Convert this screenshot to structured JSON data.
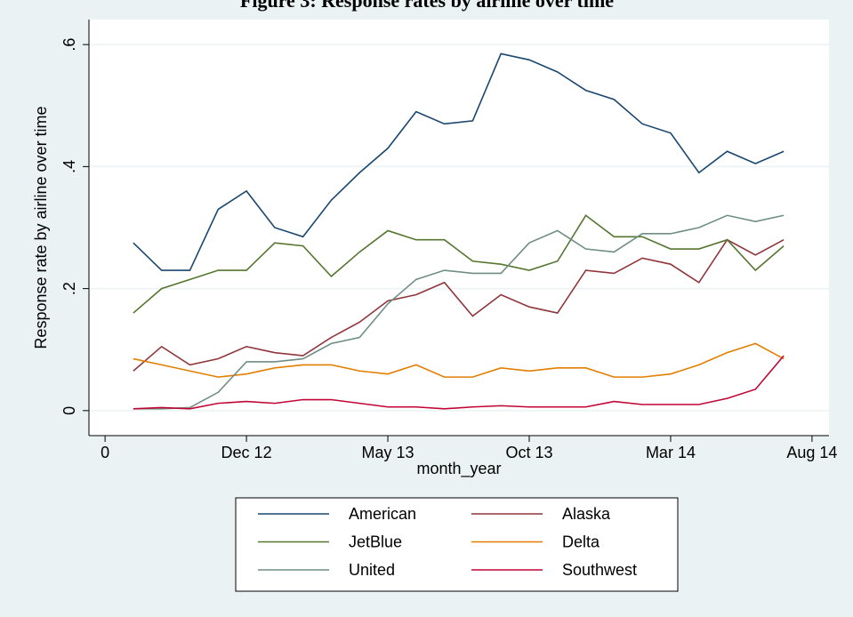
{
  "chart_data": {
    "type": "line",
    "title": "Figure 3: Response rates by airline over time",
    "x_label": "month_year",
    "y_label": "Response rate by airline over time",
    "x": [
      1,
      2,
      3,
      4,
      5,
      6,
      7,
      8,
      9,
      10,
      11,
      12,
      13,
      14,
      15,
      16,
      17,
      18,
      19,
      20,
      21,
      22,
      23,
      24
    ],
    "xlim": [
      -0.57,
      25.6
    ],
    "xticks": [
      0,
      {
        "value": 5,
        "label": "Dec 12"
      },
      {
        "value": 10,
        "label": "May 13"
      },
      {
        "value": 15,
        "label": "Oct 13"
      },
      {
        "value": 20,
        "label": "Mar 14"
      },
      {
        "value": 25,
        "label": "Aug 14"
      }
    ],
    "ylim": [
      -0.041,
      0.641
    ],
    "yticks": [
      0,
      {
        "value": 0.2,
        "label": ".2"
      },
      {
        "value": 0.4,
        "label": ".4"
      },
      {
        "value": 0.6,
        "label": ".6"
      }
    ],
    "grid": true,
    "series": [
      {
        "name": "American",
        "color": "#1a476f",
        "values": [
          0.275,
          0.23,
          0.23,
          0.33,
          0.36,
          0.3,
          0.285,
          0.345,
          0.39,
          0.43,
          0.49,
          0.47,
          0.475,
          0.585,
          0.575,
          0.555,
          0.525,
          0.51,
          0.47,
          0.455,
          0.39,
          0.425,
          0.405,
          0.425
        ]
      },
      {
        "name": "Alaska",
        "color": "#90353b",
        "values": [
          0.065,
          0.105,
          0.075,
          0.085,
          0.105,
          0.095,
          0.09,
          0.12,
          0.145,
          0.18,
          0.19,
          0.21,
          0.155,
          0.19,
          0.17,
          0.16,
          0.23,
          0.225,
          0.25,
          0.24,
          0.21,
          0.28,
          0.255,
          0.28
        ]
      },
      {
        "name": "JetBlue",
        "color": "#55752f",
        "values": [
          0.16,
          0.2,
          0.215,
          0.23,
          0.23,
          0.275,
          0.27,
          0.22,
          0.26,
          0.295,
          0.28,
          0.28,
          0.245,
          0.24,
          0.23,
          0.245,
          0.32,
          0.285,
          0.285,
          0.265,
          0.265,
          0.28,
          0.23,
          0.27
        ]
      },
      {
        "name": "Delta",
        "color": "#e37e00",
        "values": [
          0.085,
          0.075,
          0.065,
          0.055,
          0.06,
          0.07,
          0.075,
          0.075,
          0.065,
          0.06,
          0.075,
          0.055,
          0.055,
          0.07,
          0.065,
          0.07,
          0.07,
          0.055,
          0.055,
          0.06,
          0.075,
          0.095,
          0.11,
          0.085
        ]
      },
      {
        "name": "United",
        "color": "#6e8e84",
        "values": [
          0.003,
          0.003,
          0.005,
          0.03,
          0.08,
          0.08,
          0.085,
          0.11,
          0.12,
          0.175,
          0.215,
          0.23,
          0.225,
          0.225,
          0.275,
          0.295,
          0.265,
          0.26,
          0.29,
          0.29,
          0.3,
          0.32,
          0.31,
          0.32
        ]
      },
      {
        "name": "Southwest",
        "color": "#c10534",
        "values": [
          0.003,
          0.005,
          0.003,
          0.012,
          0.015,
          0.012,
          0.018,
          0.018,
          0.012,
          0.006,
          0.006,
          0.003,
          0.006,
          0.008,
          0.006,
          0.006,
          0.006,
          0.015,
          0.01,
          0.01,
          0.01,
          0.02,
          0.035,
          0.09
        ]
      }
    ]
  }
}
